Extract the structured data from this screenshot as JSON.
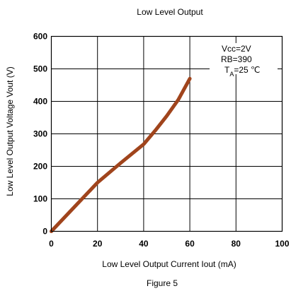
{
  "chart_data": {
    "type": "line",
    "title": "Low Level Output",
    "xlabel": "Low Level Output Current Iout (mA)",
    "ylabel": "Low Level Output Voltage Vout (V)",
    "caption": "Figure 5",
    "xlim": [
      0,
      100
    ],
    "ylim": [
      0,
      600
    ],
    "x_ticks": [
      0,
      20,
      40,
      60,
      80,
      100
    ],
    "x_tick_labels": [
      "0",
      "20",
      "40",
      "60",
      "80",
      "100"
    ],
    "y_ticks": [
      0,
      100,
      200,
      300,
      400,
      500,
      600
    ],
    "y_tick_labels": [
      "0",
      "100",
      "200",
      "300",
      "400",
      "500",
      "600"
    ],
    "grid": true,
    "annotations": {
      "line1": "Vcc=2V",
      "line2": "RB=390",
      "line3_prefix": "T",
      "line3_subscript": "A",
      "line3_suffix": "=25 ℃"
    },
    "series": [
      {
        "x": [
          0,
          10,
          20,
          30,
          40,
          45,
          50,
          55,
          60
        ],
        "y": [
          0,
          75,
          150,
          210,
          268,
          310,
          355,
          405,
          470
        ],
        "color": "#A0441C"
      }
    ]
  }
}
